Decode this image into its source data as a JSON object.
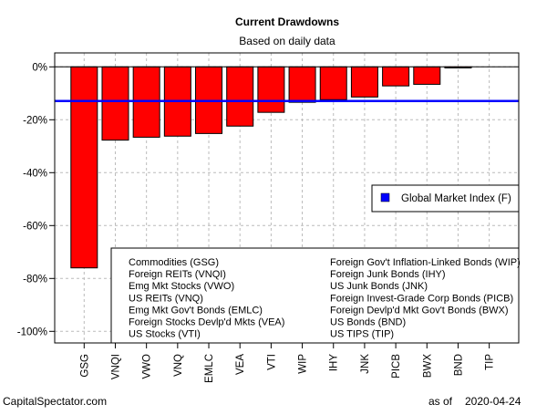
{
  "chart_data": {
    "type": "bar",
    "title": "Current Drawdowns",
    "subtitle": "Based on daily data",
    "categories": [
      "GSG",
      "VNQI",
      "VWO",
      "VNQ",
      "EMLC",
      "VEA",
      "VTI",
      "WIP",
      "IHY",
      "JNK",
      "PICB",
      "BWX",
      "BND",
      "TIP"
    ],
    "values": [
      -76,
      -27.7,
      -26.6,
      -26.2,
      -25.2,
      -22.4,
      -17.2,
      -13.4,
      -12.4,
      -11.4,
      -7.2,
      -6.6,
      -0.4,
      0
    ],
    "units": "%",
    "ylim": [
      -104,
      5
    ],
    "yticks": [
      0,
      -20,
      -40,
      -60,
      -80,
      -100
    ],
    "ytick_labels": [
      "0%",
      "-20%",
      "-40%",
      "-60%",
      "-80%",
      "-100%"
    ],
    "grid": true,
    "bar_color": "#FF0000",
    "reference_line": {
      "name": "Global Market Index (F)",
      "value": -12.9,
      "color": "#0000FF"
    },
    "legend": {
      "placement": "right",
      "entries": [
        "Global Market Index (F)"
      ]
    },
    "key": {
      "left": [
        "Commodities (GSG)",
        "Foreign REITs (VNQI)",
        "Emg Mkt Stocks (VWO)",
        "US REITs (VNQ)",
        "Emg Mkt Gov't Bonds (EMLC)",
        "Foreign Stocks Devlp'd Mkts (VEA)",
        "US Stocks (VTI)"
      ],
      "right": [
        "Foreign Gov't Inflation-Linked Bonds (WIP)",
        "Foreign Junk Bonds (IHY)",
        "US Junk Bonds (JNK)",
        "Foreign Invest-Grade Corp Bonds (PICB)",
        "Foreign Devlp'd Mkt Gov't Bonds (BWX)",
        "US Bonds (BND)",
        "US TIPS (TIP)"
      ]
    }
  },
  "footer": {
    "source": "CapitalSpectator.com",
    "as_of_label": "as of",
    "date": "2020-04-24"
  }
}
